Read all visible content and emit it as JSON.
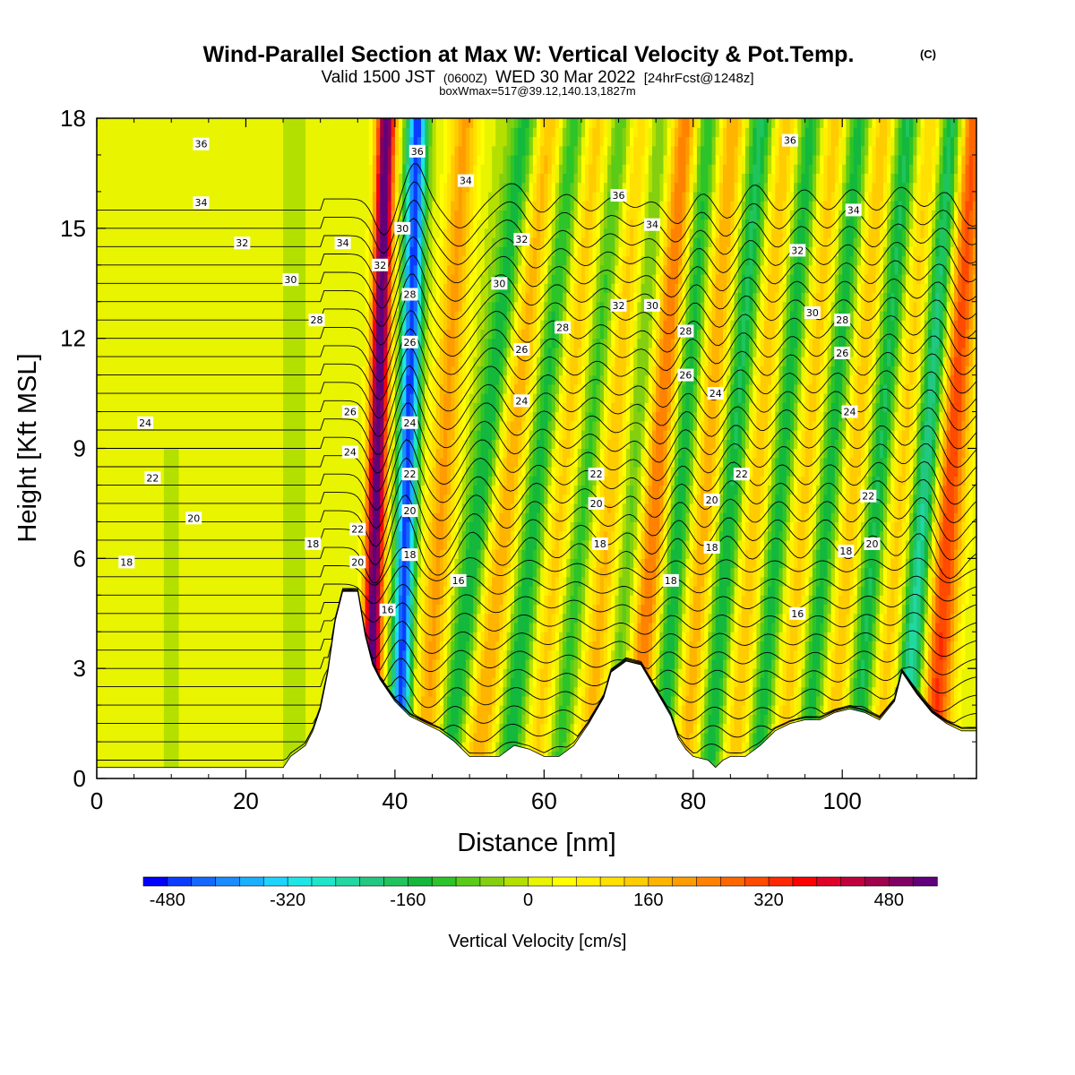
{
  "figure": {
    "title": "Wind-Parallel Section at Max W: Vertical Velocity & Pot.Temp.",
    "copyright": "(C)",
    "valid_prefix": "Valid 1500 JST",
    "valid_utc": "(0600Z)",
    "valid_date": "WED 30 Mar 2022",
    "forecast": "[24hrFcst@1248z]",
    "box_info": "boxWmax=517@39.12,140.13,1827m"
  },
  "chart_data": {
    "type": "heatmap",
    "xlabel": "Distance [nm]",
    "ylabel": "Height [Kft MSL]",
    "xlim": [
      0,
      118
    ],
    "ylim": [
      0,
      18
    ],
    "xticks": [
      0,
      20,
      40,
      60,
      80,
      100
    ],
    "yticks": [
      0,
      3,
      6,
      9,
      12,
      15,
      18
    ],
    "colorbar": {
      "label": "Vertical Velocity [cm/s]",
      "ticks": [
        -480,
        -320,
        -160,
        0,
        160,
        320,
        480
      ],
      "levels": [
        -512,
        -480,
        -448,
        -416,
        -384,
        -352,
        -320,
        -288,
        -256,
        -224,
        -192,
        -160,
        -128,
        -96,
        -64,
        -32,
        0,
        32,
        64,
        96,
        128,
        160,
        192,
        224,
        256,
        288,
        320,
        352,
        384,
        416,
        448,
        480,
        512,
        544
      ],
      "colors": [
        "#0000ff",
        "#0a3cff",
        "#1467ff",
        "#1a8cff",
        "#1ab0ff",
        "#1fd3ff",
        "#1fe6e6",
        "#1fe6c8",
        "#20d8a0",
        "#22c880",
        "#1fc45c",
        "#14b83c",
        "#2cc428",
        "#5acc18",
        "#84d010",
        "#b4e000",
        "#e8f400",
        "#ffff00",
        "#fff000",
        "#ffe000",
        "#ffcc00",
        "#ffb400",
        "#ff9c00",
        "#ff8200",
        "#ff6600",
        "#ff4a00",
        "#ff2800",
        "#ff0000",
        "#e00028",
        "#c0003c",
        "#a0004c",
        "#800064",
        "#60007a"
      ]
    },
    "terrain_profile": {
      "x": [
        0,
        25,
        26,
        28,
        29,
        30,
        31,
        32,
        33,
        35,
        36,
        37,
        38,
        40,
        42,
        44,
        46,
        48,
        50,
        52,
        54,
        56,
        58,
        60,
        62,
        64,
        66,
        68,
        69,
        71,
        73,
        75,
        77,
        78,
        79,
        80,
        82,
        83,
        84,
        85,
        87,
        89,
        91,
        93,
        95,
        97,
        99,
        101,
        103,
        105,
        107,
        108,
        110,
        112,
        114,
        116,
        118
      ],
      "height_kft": [
        0.3,
        0.3,
        0.6,
        0.9,
        1.3,
        1.9,
        2.9,
        4.3,
        5.1,
        5.1,
        3.9,
        3.1,
        2.7,
        2.1,
        1.7,
        1.5,
        1.3,
        1.0,
        0.6,
        0.6,
        0.6,
        0.9,
        0.8,
        0.6,
        0.6,
        0.9,
        1.5,
        2.2,
        2.9,
        3.2,
        3.1,
        2.4,
        1.7,
        1.1,
        0.8,
        0.6,
        0.5,
        0.3,
        0.5,
        0.6,
        0.6,
        0.9,
        1.3,
        1.5,
        1.6,
        1.6,
        1.8,
        1.9,
        1.8,
        1.6,
        2.1,
        2.9,
        2.3,
        1.8,
        1.5,
        1.3,
        1.3
      ]
    },
    "w_bands": [
      {
        "x_at_0kft": 36.5,
        "tilt_nm_per_kft": 0.13,
        "amp_cm_s": 560,
        "width_nm": 1.3
      },
      {
        "x_at_0kft": 40.5,
        "tilt_nm_per_kft": 0.14,
        "amp_cm_s": -470,
        "width_nm": 1.3
      },
      {
        "x_at_0kft": 44.0,
        "tilt_nm_per_kft": 0.3,
        "amp_cm_s": 200,
        "width_nm": 2.0
      },
      {
        "x_at_0kft": 47.0,
        "tilt_nm_per_kft": 0.6,
        "amp_cm_s": -180,
        "width_nm": 2.0
      },
      {
        "x_at_0kft": 51.0,
        "tilt_nm_per_kft": 0.55,
        "amp_cm_s": 200,
        "width_nm": 2.6
      },
      {
        "x_at_0kft": 55.0,
        "tilt_nm_per_kft": 0.5,
        "amp_cm_s": -190,
        "width_nm": 2.2
      },
      {
        "x_at_0kft": 59.0,
        "tilt_nm_per_kft": 0.45,
        "amp_cm_s": 170,
        "width_nm": 2.4
      },
      {
        "x_at_0kft": 61.5,
        "tilt_nm_per_kft": 0.5,
        "amp_cm_s": -170,
        "width_nm": 2.0
      },
      {
        "x_at_0kft": 66.0,
        "tilt_nm_per_kft": 0.4,
        "amp_cm_s": 190,
        "width_nm": 2.6
      },
      {
        "x_at_0kft": 69.0,
        "tilt_nm_per_kft": 0.35,
        "amp_cm_s": -160,
        "width_nm": 2.0
      },
      {
        "x_at_0kft": 72.0,
        "tilt_nm_per_kft": 0.4,
        "amp_cm_s": 280,
        "width_nm": 2.2
      },
      {
        "x_at_0kft": 75.5,
        "tilt_nm_per_kft": 0.35,
        "amp_cm_s": -200,
        "width_nm": 2.0
      },
      {
        "x_at_0kft": 79.0,
        "tilt_nm_per_kft": 0.35,
        "amp_cm_s": 200,
        "width_nm": 2.2
      },
      {
        "x_at_0kft": 82.0,
        "tilt_nm_per_kft": 0.4,
        "amp_cm_s": -200,
        "width_nm": 2.0
      },
      {
        "x_at_0kft": 85.5,
        "tilt_nm_per_kft": 0.4,
        "amp_cm_s": 180,
        "width_nm": 2.4
      },
      {
        "x_at_0kft": 88.5,
        "tilt_nm_per_kft": 0.4,
        "amp_cm_s": -200,
        "width_nm": 2.0
      },
      {
        "x_at_0kft": 92.0,
        "tilt_nm_per_kft": 0.4,
        "amp_cm_s": 170,
        "width_nm": 2.4
      },
      {
        "x_at_0kft": 95.0,
        "tilt_nm_per_kft": 0.4,
        "amp_cm_s": -200,
        "width_nm": 2.0
      },
      {
        "x_at_0kft": 98.5,
        "tilt_nm_per_kft": 0.4,
        "amp_cm_s": 180,
        "width_nm": 2.4
      },
      {
        "x_at_0kft": 101.5,
        "tilt_nm_per_kft": 0.4,
        "amp_cm_s": -220,
        "width_nm": 2.0
      },
      {
        "x_at_0kft": 105.0,
        "tilt_nm_per_kft": 0.4,
        "amp_cm_s": 180,
        "width_nm": 2.4
      },
      {
        "x_at_0kft": 108.0,
        "tilt_nm_per_kft": 0.38,
        "amp_cm_s": -300,
        "width_nm": 2.0
      },
      {
        "x_at_0kft": 112.0,
        "tilt_nm_per_kft": 0.3,
        "amp_cm_s": 330,
        "width_nm": 2.2
      }
    ],
    "theta_isentropes": [
      8,
      9,
      10,
      11,
      12,
      13,
      14,
      15,
      16,
      17,
      18,
      19,
      20,
      21,
      22,
      23,
      24,
      25,
      26,
      27,
      28,
      29,
      30,
      31,
      32,
      33,
      34,
      35,
      36,
      37,
      38
    ],
    "theta_labels": [
      {
        "text": "36",
        "x": 14,
        "y": 17.3
      },
      {
        "text": "34",
        "x": 14,
        "y": 15.7
      },
      {
        "text": "32",
        "x": 19.5,
        "y": 14.6
      },
      {
        "text": "30",
        "x": 26,
        "y": 13.6
      },
      {
        "text": "28",
        "x": 29.5,
        "y": 12.5
      },
      {
        "text": "24",
        "x": 6.5,
        "y": 9.7
      },
      {
        "text": "22",
        "x": 7.5,
        "y": 8.2
      },
      {
        "text": "20",
        "x": 13,
        "y": 7.1
      },
      {
        "text": "18",
        "x": 4,
        "y": 5.9
      },
      {
        "text": "18",
        "x": 29,
        "y": 6.4
      },
      {
        "text": "34",
        "x": 33,
        "y": 14.6
      },
      {
        "text": "32",
        "x": 38,
        "y": 14.0
      },
      {
        "text": "26",
        "x": 34,
        "y": 10.0
      },
      {
        "text": "24",
        "x": 34,
        "y": 8.9
      },
      {
        "text": "22",
        "x": 35,
        "y": 6.8
      },
      {
        "text": "20",
        "x": 35,
        "y": 5.9
      },
      {
        "text": "16",
        "x": 39,
        "y": 4.6
      },
      {
        "text": "36",
        "x": 43,
        "y": 17.1
      },
      {
        "text": "30",
        "x": 41,
        "y": 15.0
      },
      {
        "text": "28",
        "x": 42,
        "y": 13.2
      },
      {
        "text": "26",
        "x": 42,
        "y": 11.9
      },
      {
        "text": "24",
        "x": 42,
        "y": 9.7
      },
      {
        "text": "22",
        "x": 42,
        "y": 8.3
      },
      {
        "text": "20",
        "x": 42,
        "y": 7.3
      },
      {
        "text": "18",
        "x": 42,
        "y": 6.1
      },
      {
        "text": "16",
        "x": 48.5,
        "y": 5.4
      },
      {
        "text": "34",
        "x": 49.5,
        "y": 16.3
      },
      {
        "text": "32",
        "x": 57,
        "y": 14.7
      },
      {
        "text": "30",
        "x": 54,
        "y": 13.5
      },
      {
        "text": "28",
        "x": 62.5,
        "y": 12.3
      },
      {
        "text": "26",
        "x": 57,
        "y": 11.7
      },
      {
        "text": "24",
        "x": 57,
        "y": 10.3
      },
      {
        "text": "22",
        "x": 67,
        "y": 8.3
      },
      {
        "text": "20",
        "x": 67,
        "y": 7.5
      },
      {
        "text": "18",
        "x": 67.5,
        "y": 6.4
      },
      {
        "text": "36",
        "x": 70,
        "y": 15.9
      },
      {
        "text": "34",
        "x": 74.5,
        "y": 15.1
      },
      {
        "text": "32",
        "x": 70,
        "y": 12.9
      },
      {
        "text": "30",
        "x": 74.5,
        "y": 12.9
      },
      {
        "text": "28",
        "x": 79,
        "y": 12.2
      },
      {
        "text": "26",
        "x": 79,
        "y": 11.0
      },
      {
        "text": "24",
        "x": 83,
        "y": 10.5
      },
      {
        "text": "22",
        "x": 86.5,
        "y": 8.3
      },
      {
        "text": "20",
        "x": 82.5,
        "y": 7.6
      },
      {
        "text": "18",
        "x": 82.5,
        "y": 6.3
      },
      {
        "text": "18",
        "x": 77,
        "y": 5.4
      },
      {
        "text": "36",
        "x": 93,
        "y": 17.4
      },
      {
        "text": "34",
        "x": 101.5,
        "y": 15.5
      },
      {
        "text": "32",
        "x": 94,
        "y": 14.4
      },
      {
        "text": "30",
        "x": 96,
        "y": 12.7
      },
      {
        "text": "28",
        "x": 100,
        "y": 12.5
      },
      {
        "text": "26",
        "x": 100,
        "y": 11.6
      },
      {
        "text": "24",
        "x": 101,
        "y": 10.0
      },
      {
        "text": "22",
        "x": 103.5,
        "y": 7.7
      },
      {
        "text": "20",
        "x": 104,
        "y": 6.4
      },
      {
        "text": "18",
        "x": 100.5,
        "y": 6.2
      },
      {
        "text": "16",
        "x": 94,
        "y": 4.5
      }
    ]
  }
}
